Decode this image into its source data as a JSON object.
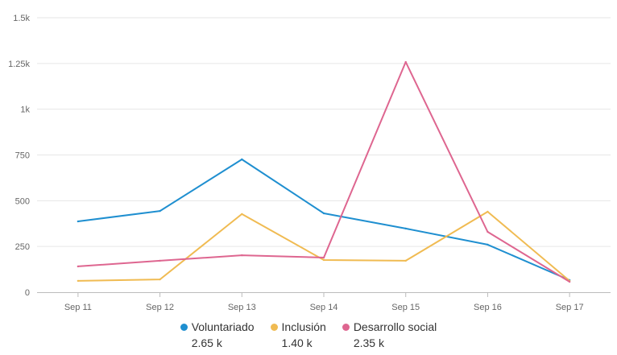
{
  "chart_data": {
    "type": "line",
    "title": "",
    "xlabel": "",
    "ylabel": "",
    "categories": [
      "Sep 11",
      "Sep 12",
      "Sep 13",
      "Sep 14",
      "Sep 15",
      "Sep 16",
      "Sep 17"
    ],
    "ylim": [
      0,
      1500
    ],
    "yticks": [
      0,
      250,
      500,
      750,
      1000,
      1250,
      1500
    ],
    "ytick_labels": [
      "0",
      "250",
      "500",
      "750",
      "1k",
      "1.25k",
      "1.5k"
    ],
    "grid": true,
    "legend_position": "bottom",
    "series": [
      {
        "name": "Voluntariado",
        "color": "#1f8fd0",
        "total": "2.65 k",
        "values": [
          387,
          444,
          726,
          431,
          348,
          260,
          66
        ]
      },
      {
        "name": "Inclusión",
        "color": "#f0bb52",
        "total": "1.40 k",
        "values": [
          62,
          70,
          427,
          176,
          172,
          440,
          62
        ]
      },
      {
        "name": "Desarrollo social",
        "color": "#de6690",
        "total": "2.35 k",
        "values": [
          141,
          172,
          202,
          189,
          1258,
          330,
          57
        ]
      }
    ]
  }
}
